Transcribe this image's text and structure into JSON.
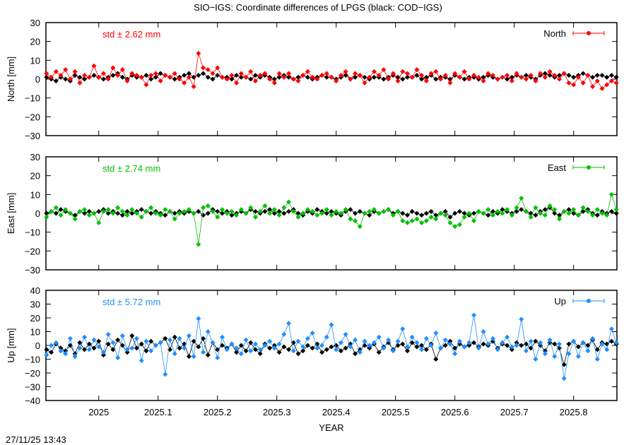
{
  "title": "SIO−IGS: Coordinate differences of LPGS (black: COD−IGS)",
  "timestamp": "27/11/25 13:43",
  "colors": {
    "north": "#ff0000",
    "east": "#00c000",
    "up": "#1e8fff",
    "reference": "#000000"
  },
  "chart_data": [
    {
      "type": "line",
      "panel": "north",
      "ylabel": "North [mm]",
      "xlabel": "",
      "ylim": [
        -30,
        30
      ],
      "yticks": [
        30,
        20,
        10,
        0,
        -10,
        -20,
        -30
      ],
      "xlim": [
        2024.911,
        2025.873
      ],
      "std_label": "std ± 2.62 mm",
      "legend": "North",
      "legend_placement": "top-right",
      "marker": "diamond",
      "x": [
        2024.912,
        2024.92,
        2024.928,
        2024.936,
        2024.944,
        2024.952,
        2024.96,
        2024.968,
        2024.976,
        2024.984,
        2024.992,
        2025.0,
        2025.008,
        2025.016,
        2025.024,
        2025.032,
        2025.04,
        2025.048,
        2025.056,
        2025.064,
        2025.072,
        2025.08,
        2025.088,
        2025.096,
        2025.104,
        2025.112,
        2025.12,
        2025.128,
        2025.136,
        2025.144,
        2025.152,
        2025.16,
        2025.168,
        2025.176,
        2025.184,
        2025.192,
        2025.2,
        2025.208,
        2025.216,
        2025.224,
        2025.232,
        2025.24,
        2025.248,
        2025.256,
        2025.264,
        2025.272,
        2025.28,
        2025.288,
        2025.296,
        2025.304,
        2025.312,
        2025.32,
        2025.328,
        2025.336,
        2025.344,
        2025.352,
        2025.36,
        2025.368,
        2025.376,
        2025.384,
        2025.392,
        2025.4,
        2025.408,
        2025.416,
        2025.424,
        2025.432,
        2025.44,
        2025.448,
        2025.456,
        2025.464,
        2025.472,
        2025.48,
        2025.488,
        2025.496,
        2025.504,
        2025.512,
        2025.52,
        2025.528,
        2025.536,
        2025.544,
        2025.552,
        2025.56,
        2025.568,
        2025.576,
        2025.584,
        2025.592,
        2025.6,
        2025.608,
        2025.616,
        2025.624,
        2025.632,
        2025.64,
        2025.648,
        2025.656,
        2025.664,
        2025.672,
        2025.68,
        2025.688,
        2025.696,
        2025.704,
        2025.712,
        2025.72,
        2025.728,
        2025.736,
        2025.744,
        2025.752,
        2025.76,
        2025.768,
        2025.776,
        2025.784,
        2025.792,
        2025.8,
        2025.808,
        2025.816,
        2025.824,
        2025.832,
        2025.84,
        2025.848,
        2025.856,
        2025.864,
        2025.872
      ],
      "series": [
        {
          "role": "reference",
          "values": [
            1,
            0,
            -1,
            1,
            0,
            -1,
            2,
            1,
            0,
            1,
            2,
            1,
            0,
            1,
            2,
            3,
            1,
            0,
            2,
            1,
            1,
            2,
            0,
            1,
            3,
            2,
            1,
            0,
            1,
            2,
            3,
            1,
            2,
            3,
            1,
            0,
            2,
            1,
            1,
            0,
            2,
            1,
            1,
            0,
            2,
            1,
            2,
            1,
            0,
            1,
            2,
            1,
            0,
            1,
            2,
            1,
            0,
            1,
            2,
            1,
            1,
            0,
            1,
            2,
            0,
            1,
            2,
            1,
            0,
            1,
            1,
            0,
            1,
            2,
            1,
            0,
            1,
            1,
            2,
            0,
            1,
            2,
            0,
            1,
            1,
            0,
            2,
            1,
            0,
            1,
            1,
            0,
            1,
            2,
            1,
            0,
            1,
            0,
            1,
            2,
            1,
            2,
            1,
            0,
            2,
            3,
            2,
            1,
            2,
            3,
            2,
            1,
            2,
            3,
            2,
            1,
            2,
            2,
            1,
            2,
            1
          ]
        },
        {
          "role": "main",
          "name": "North",
          "values": [
            3,
            1,
            4,
            2,
            5,
            0,
            4,
            -2,
            2,
            1,
            7,
            1,
            3,
            0,
            6,
            2,
            5,
            -1,
            3,
            2,
            1,
            -3,
            2,
            3,
            -1,
            2,
            1,
            3,
            0,
            -2,
            1,
            -4,
            13.7,
            6,
            5,
            3,
            6,
            1,
            0,
            2,
            -2,
            3,
            1,
            4,
            -1,
            2,
            3,
            0,
            -2,
            3,
            1,
            3,
            0,
            -1,
            2,
            4,
            1,
            0,
            2,
            3,
            1,
            -1,
            2,
            4,
            0,
            3,
            2,
            -2,
            1,
            4,
            2,
            5,
            0,
            3,
            -1,
            4,
            3,
            1,
            5,
            2,
            -1,
            3,
            4,
            0,
            2,
            -2,
            3,
            1,
            4,
            0,
            2,
            1,
            -1,
            3,
            2,
            0,
            1,
            2,
            -1,
            3,
            1,
            0,
            2,
            -1,
            3,
            1,
            4,
            2,
            0,
            3,
            -2,
            -3,
            1,
            -2,
            2,
            -4,
            -1,
            -5,
            -3,
            -1,
            -2
          ]
        }
      ]
    },
    {
      "type": "line",
      "panel": "east",
      "ylabel": "East [mm]",
      "xlabel": "",
      "ylim": [
        -30,
        30
      ],
      "yticks": [
        30,
        20,
        10,
        0,
        -10,
        -20,
        -30
      ],
      "xlim": [
        2024.911,
        2025.873
      ],
      "std_label": "std ± 2.74 mm",
      "legend": "East",
      "legend_placement": "top-right",
      "marker": "diamond",
      "series": [
        {
          "role": "reference",
          "values": [
            0,
            1,
            0,
            2,
            1,
            0,
            -1,
            1,
            0,
            1,
            0,
            1,
            2,
            0,
            1,
            0,
            -1,
            1,
            0,
            1,
            2,
            1,
            0,
            1,
            0,
            -1,
            1,
            0,
            1,
            0,
            1,
            0,
            1,
            -1,
            0,
            2,
            1,
            0,
            1,
            -1,
            0,
            1,
            0,
            2,
            1,
            0,
            1,
            2,
            0,
            1,
            0,
            1,
            2,
            0,
            -1,
            1,
            0,
            2,
            1,
            0,
            1,
            0,
            -1,
            1,
            2,
            0,
            1,
            0,
            -1,
            1,
            0,
            1,
            2,
            0,
            1,
            0,
            -1,
            1,
            0,
            -1,
            0,
            1,
            -1,
            0,
            1,
            -2,
            0,
            1,
            0,
            -1,
            0,
            1,
            0,
            -1,
            1,
            0,
            2,
            1,
            0,
            1,
            2,
            1,
            0,
            -1,
            1,
            2,
            3,
            0,
            -1,
            1,
            2,
            0,
            -1,
            1,
            2,
            0,
            -1,
            1,
            0,
            1,
            0
          ]
        },
        {
          "role": "main",
          "name": "East",
          "values": [
            -2,
            1,
            3,
            -1,
            2,
            0,
            -3,
            1,
            2,
            -1,
            0,
            -5,
            1,
            2,
            0,
            3,
            1,
            -1,
            2,
            0,
            -2,
            1,
            3,
            0,
            -1,
            2,
            1,
            -3,
            0,
            1,
            2,
            0,
            -16.5,
            3,
            4,
            1,
            -2,
            2,
            0,
            1,
            -1,
            2,
            0,
            3,
            -2,
            1,
            4,
            0,
            2,
            -1,
            3,
            6,
            1,
            -2,
            0,
            2,
            1,
            -1,
            0,
            2,
            -1,
            1,
            0,
            2,
            -3,
            -4,
            -7,
            0,
            1,
            2,
            0,
            1,
            2,
            -1,
            1,
            -4,
            -5,
            -4,
            -3,
            -5,
            -4,
            -2,
            -3,
            0,
            -1,
            -5,
            -7,
            -6,
            -2,
            0,
            -4,
            1,
            0,
            2,
            -1,
            1,
            0,
            2,
            -1,
            3,
            8,
            1,
            -2,
            3,
            0,
            -1,
            4,
            2,
            -3,
            1,
            0,
            2,
            -1,
            3,
            1,
            -1,
            2,
            0,
            -1,
            10,
            2
          ]
        }
      ]
    },
    {
      "type": "line",
      "panel": "up",
      "ylabel": "Up [mm]",
      "xlabel": "YEAR",
      "ylim": [
        -40,
        40
      ],
      "yticks": [
        40,
        30,
        20,
        10,
        0,
        -10,
        -20,
        -30,
        -40
      ],
      "xlim": [
        2024.911,
        2025.873
      ],
      "xticks": [
        2025,
        2025.1,
        2025.2,
        2025.3,
        2025.4,
        2025.5,
        2025.6,
        2025.7,
        2025.8
      ],
      "xtick_labels": [
        "2025",
        "2025.1",
        "2025.2",
        "2025.3",
        "2025.4",
        "2025.5",
        "2025.6",
        "2025.7",
        "2025.8"
      ],
      "std_label": "std ± 5.72 mm",
      "legend": "Up",
      "legend_placement": "top-right",
      "marker": "diamond",
      "series": [
        {
          "role": "reference",
          "values": [
            -3,
            -5,
            1,
            -2,
            -4,
            0,
            -6,
            2,
            -3,
            1,
            -2,
            3,
            -7,
            1,
            -3,
            4,
            0,
            -5,
            7,
            -2,
            1,
            -4,
            3,
            0,
            2,
            5,
            -3,
            6,
            -2,
            1,
            -8,
            3,
            -1,
            5,
            -7,
            2,
            -3,
            0,
            -2,
            1,
            -5,
            0,
            -4,
            2,
            -3,
            -6,
            1,
            -2,
            0,
            -5,
            -1,
            -3,
            2,
            -6,
            -4,
            0,
            -2,
            1,
            -5,
            -3,
            -1,
            0,
            -4,
            -2,
            1,
            -6,
            -3,
            0,
            -2,
            1,
            -5,
            -1,
            2,
            -3,
            0,
            1,
            -4,
            2,
            -1,
            0,
            -3,
            1,
            -10,
            -2,
            0,
            3,
            -2,
            1,
            -1,
            0,
            2,
            -1,
            1,
            0,
            3,
            -2,
            1,
            0,
            -3,
            2,
            0,
            1,
            -2,
            3,
            0,
            -4,
            2,
            1,
            -2,
            -14,
            1,
            3,
            -1,
            2,
            0,
            4,
            -3,
            2,
            1,
            3,
            1
          ]
        },
        {
          "role": "main",
          "name": "Up",
          "values": [
            -7,
            0,
            2,
            -4,
            -6,
            5,
            -8,
            -2,
            6,
            -3,
            4,
            -1,
            -5,
            8,
            2,
            -9,
            7,
            -3,
            -2,
            5,
            -11,
            3,
            -4,
            0,
            2,
            -21,
            4,
            -6,
            5,
            -2,
            7,
            -8,
            19.5,
            -5,
            10,
            2,
            -9,
            6,
            -3,
            1,
            -2,
            -6,
            4,
            -4,
            1,
            -3,
            0,
            3,
            -2,
            1,
            8,
            16,
            -4,
            3,
            -1,
            5,
            9,
            -2,
            0,
            6,
            15,
            -3,
            2,
            8,
            -1,
            4,
            -5,
            3,
            0,
            2,
            6,
            -2,
            4,
            -4,
            3,
            12,
            -1,
            6,
            2,
            -3,
            5,
            0,
            9,
            -2,
            4,
            1,
            -6,
            3,
            -1,
            2,
            22,
            -2,
            10,
            1,
            5,
            -3,
            2,
            6,
            -1,
            0,
            19,
            -4,
            3,
            -10,
            2,
            -6,
            4,
            -8,
            1,
            -24,
            -6,
            3,
            -8,
            2,
            -4,
            5,
            -10,
            1,
            -3,
            12,
            2
          ]
        }
      ]
    }
  ]
}
